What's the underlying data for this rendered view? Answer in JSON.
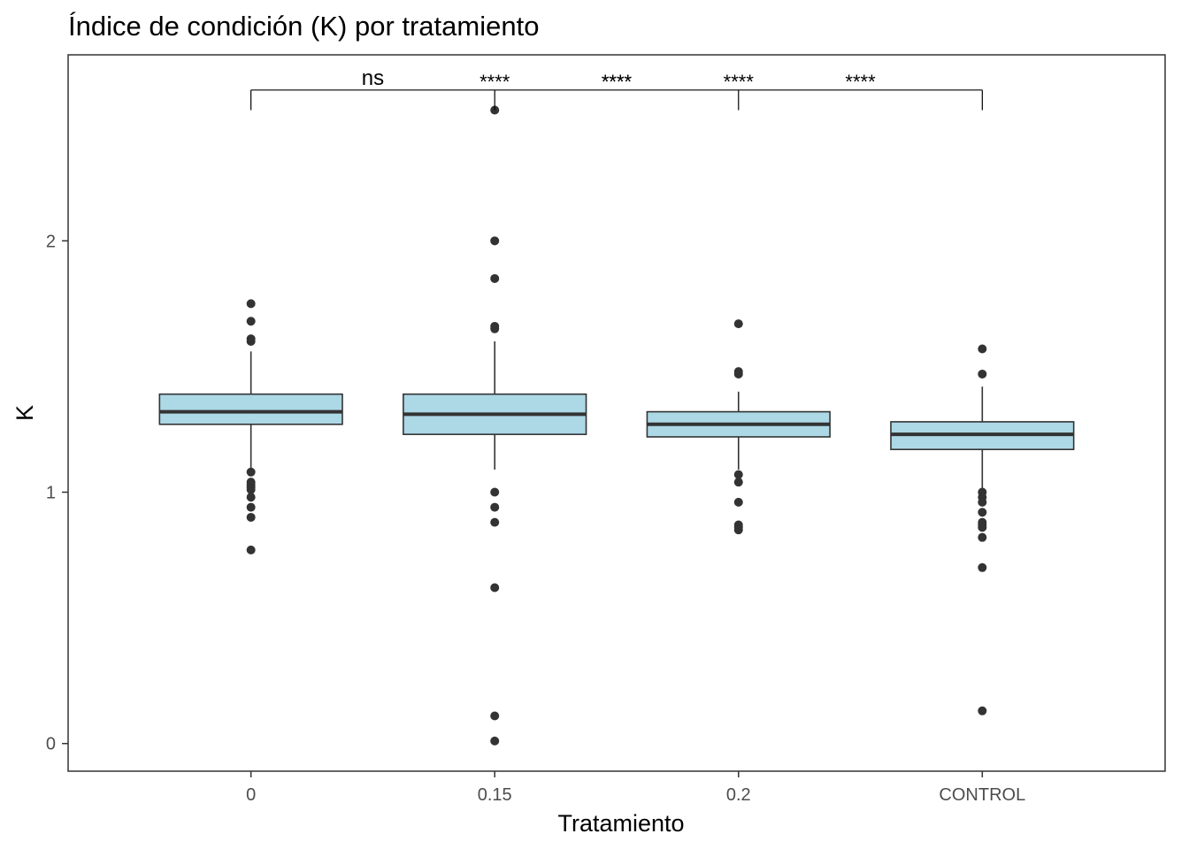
{
  "chart_data": {
    "type": "boxplot",
    "title": "Índice de condición (K) por tratamiento",
    "xlabel": "Tratamiento",
    "ylabel": "K",
    "ylim": [
      -0.11,
      2.74
    ],
    "yticks": [
      0,
      1,
      2
    ],
    "ytick_labels": [
      "0",
      "1",
      "2"
    ],
    "grid": false,
    "categories": [
      "0",
      "0.15",
      "0.2",
      "CONTROL"
    ],
    "boxes": [
      {
        "category": "0",
        "q1": 1.27,
        "median": 1.32,
        "q3": 1.39,
        "whisker_low": 1.09,
        "whisker_high": 1.56,
        "outliers": [
          1.75,
          1.68,
          1.61,
          1.6,
          1.08,
          1.04,
          1.03,
          1.02,
          1.01,
          0.98,
          0.94,
          0.9,
          0.77
        ]
      },
      {
        "category": "0.15",
        "q1": 1.23,
        "median": 1.31,
        "q3": 1.39,
        "whisker_low": 1.09,
        "whisker_high": 1.6,
        "outliers": [
          2.52,
          2.0,
          1.85,
          1.66,
          1.65,
          1.0,
          0.94,
          0.88,
          0.62,
          0.11,
          0.01
        ]
      },
      {
        "category": "0.2",
        "q1": 1.22,
        "median": 1.27,
        "q3": 1.32,
        "whisker_low": 1.09,
        "whisker_high": 1.4,
        "outliers": [
          1.67,
          1.48,
          1.47,
          1.07,
          1.04,
          0.96,
          0.87,
          0.86,
          0.85
        ]
      },
      {
        "category": "CONTROL",
        "q1": 1.17,
        "median": 1.23,
        "q3": 1.28,
        "whisker_low": 1.01,
        "whisker_high": 1.42,
        "outliers": [
          1.57,
          1.47,
          1.0,
          0.98,
          0.96,
          0.92,
          0.88,
          0.87,
          0.86,
          0.82,
          0.7,
          0.13
        ]
      }
    ],
    "significance": {
      "bracket_from": "0",
      "bracket_to": "CONTROL",
      "ticks_at": [
        "0",
        "0.15",
        "0.2",
        "CONTROL"
      ],
      "bracket_y": 2.6,
      "tick_bottom_y": 2.52,
      "labels": [
        {
          "text": "ns",
          "position": 0.5
        },
        {
          "text": "****",
          "position": 1.0
        },
        {
          "text": "****",
          "position": 1.5
        },
        {
          "text": "****",
          "position": 1.5
        },
        {
          "text": "****",
          "position": 2.0
        },
        {
          "text": "****",
          "position": 2.5
        }
      ]
    },
    "colors": {
      "box_fill": "#add8e6",
      "box_line": "#333333",
      "point": "#333333",
      "axis": "#333333"
    }
  }
}
